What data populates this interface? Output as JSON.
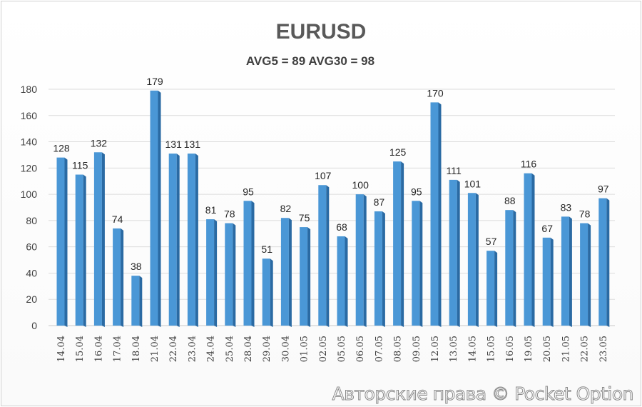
{
  "chart_data": {
    "type": "bar",
    "title": "EURUSD",
    "subtitle": "AVG5 = 89 AVG30 = 98",
    "xlabel": "",
    "ylabel": "",
    "ylim": [
      0,
      180
    ],
    "yticks": [
      0,
      20,
      40,
      60,
      80,
      100,
      120,
      140,
      160,
      180
    ],
    "grid": true,
    "categories": [
      "14.04",
      "15.04",
      "16.04",
      "17.04",
      "18.04",
      "21.04",
      "22.04",
      "23.04",
      "24.04",
      "25.04",
      "28.04",
      "29.04",
      "30.04",
      "01.05",
      "02.05",
      "05.05",
      "06.05",
      "07.05",
      "08.05",
      "09.05",
      "12.05",
      "13.05",
      "14.05",
      "15.05",
      "16.05",
      "19.05",
      "20.05",
      "21.05",
      "22.05",
      "23.05"
    ],
    "values": [
      128,
      115,
      132,
      74,
      38,
      179,
      131,
      131,
      81,
      78,
      95,
      51,
      82,
      75,
      107,
      68,
      100,
      87,
      125,
      95,
      170,
      111,
      101,
      57,
      88,
      116,
      67,
      83,
      78,
      97
    ],
    "bar_color": "#4a97d6",
    "bar_side_color": "#2a6aa3"
  },
  "watermark": "Авторские права © Pocket Option"
}
